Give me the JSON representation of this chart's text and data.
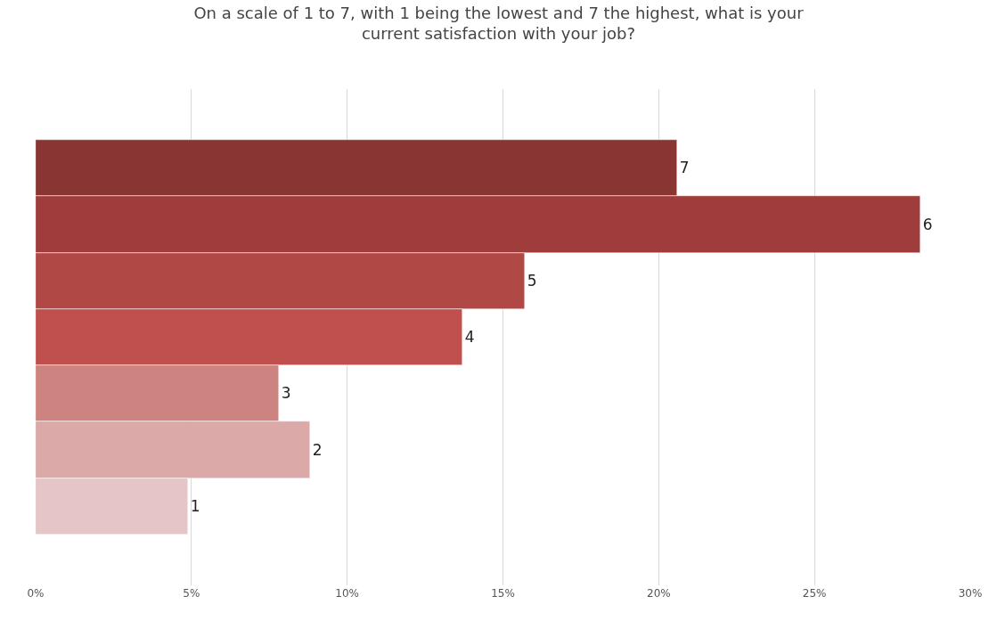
{
  "chart_data": {
    "type": "bar",
    "orientation": "horizontal",
    "title": "On a scale of 1 to 7, with 1 being the lowest and 7 the highest, what is your current satisfaction with your job?",
    "categories": [
      "7",
      "6",
      "5",
      "4",
      "3",
      "2",
      "1"
    ],
    "values": [
      20.6,
      28.4,
      15.7,
      13.7,
      7.8,
      8.8,
      4.9
    ],
    "colors": [
      "#893533",
      "#9e3d3b",
      "#b04845",
      "#c0504d",
      "#cd8380",
      "#dba9a8",
      "#e5c5c6"
    ],
    "xlim": [
      0,
      30
    ],
    "xticks": [
      {
        "value": 0,
        "label": "0%"
      },
      {
        "value": 5,
        "label": "5%"
      },
      {
        "value": 10,
        "label": "10%"
      },
      {
        "value": 15,
        "label": "15%"
      },
      {
        "value": 20,
        "label": "20%"
      },
      {
        "value": 25,
        "label": "25%"
      },
      {
        "value": 30,
        "label": "30%"
      }
    ],
    "grid": "x",
    "tick_labels": "x"
  }
}
